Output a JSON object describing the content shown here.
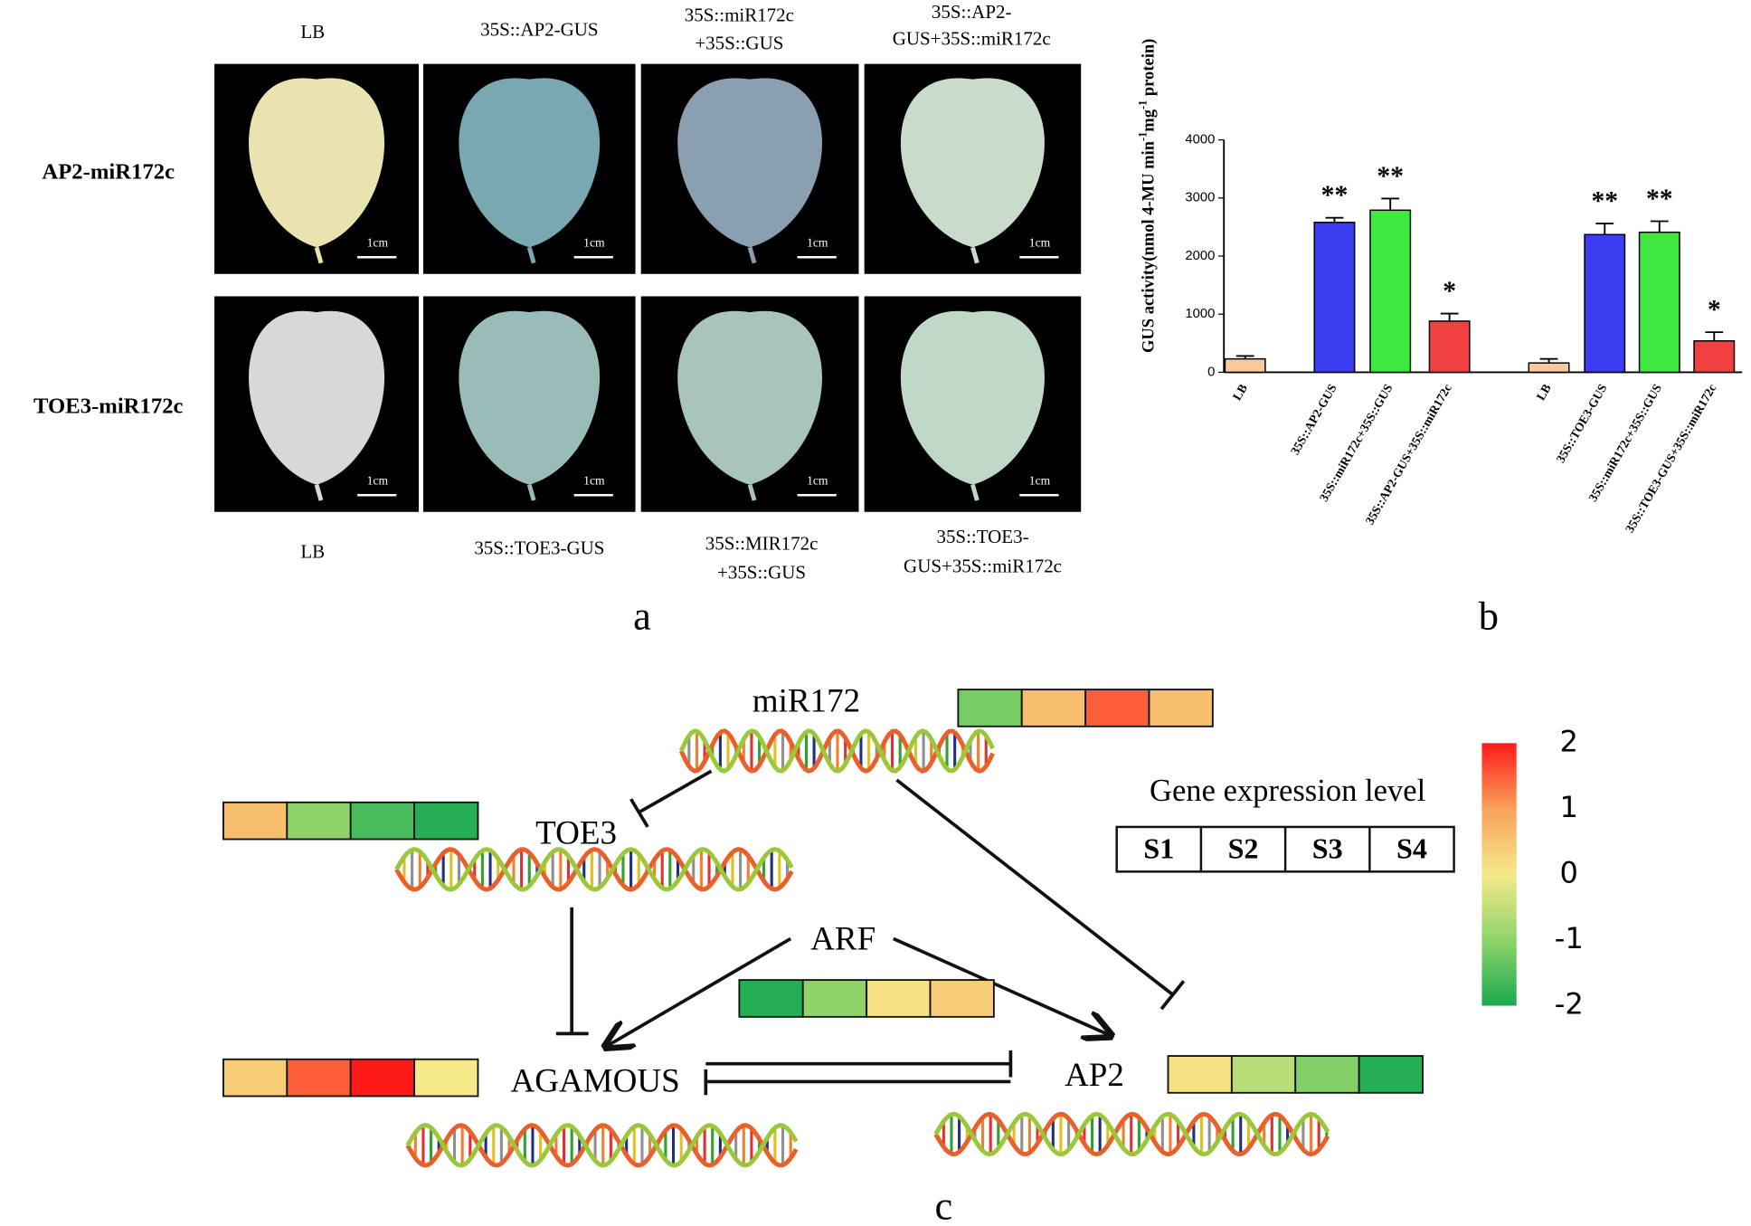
{
  "panel_a": {
    "label": "a",
    "row_labels": [
      "AP2-miR172c",
      "TOE3-miR172c"
    ],
    "top_labels": [
      [
        "LB"
      ],
      [
        "35S::AP2-GUS"
      ],
      [
        "35S::miR172c",
        "+35S::GUS"
      ],
      [
        "35S::AP2-",
        "GUS+35S::miR172c"
      ]
    ],
    "bottom_labels": [
      [
        "LB"
      ],
      [
        "35S::TOE3-GUS"
      ],
      [
        "35S::MIR172c",
        "+35S::GUS"
      ],
      [
        "35S::TOE3-",
        "GUS+35S::miR172c"
      ]
    ],
    "scale_label": "1cm"
  },
  "chart_data": {
    "type": "bar",
    "label": "b",
    "y_label": [
      "GUS activity(nmol 4-MU min",
      "-1",
      "mg",
      "-1",
      " protein)"
    ],
    "categories": [
      "LB",
      "35S::AP2-GUS",
      "35S::miR172c+35S::GUS",
      "35S::AP2-GUS+35S::miR172c",
      "LB",
      "35S::TOE3-GUS",
      "35S::miR172c+35S::GUS",
      "35S::TOE3-GUS+35S::miR172c"
    ],
    "values": [
      230,
      2580,
      2790,
      880,
      160,
      2370,
      2410,
      540
    ],
    "errors": [
      50,
      80,
      200,
      130,
      70,
      190,
      190,
      150
    ],
    "colors": [
      "#f8c99a",
      "#3c3cf0",
      "#40e840",
      "#f04040",
      "#f8c99a",
      "#3c3cf0",
      "#40e840",
      "#f04040"
    ],
    "significance": [
      null,
      "**",
      "**",
      "*",
      null,
      "**",
      "**",
      "*"
    ],
    "ylim": [
      0,
      4000
    ],
    "yticks": [
      0,
      1000,
      2000,
      3000,
      4000
    ]
  },
  "panel_c": {
    "label": "c",
    "legend_title": "Gene expression level",
    "samples": [
      "S1",
      "S2",
      "S3",
      "S4"
    ],
    "colorbar": {
      "lim": [
        -2,
        2
      ],
      "ticks": [
        2,
        1,
        0,
        -1,
        -2
      ]
    },
    "genes": [
      {
        "name": "miR172",
        "values": [
          -1.2,
          0.6,
          1.5,
          0.6
        ]
      },
      {
        "name": "TOE3",
        "values": [
          0.6,
          -1.0,
          -1.6,
          -1.9
        ]
      },
      {
        "name": "ARF",
        "values": [
          -1.9,
          -1.0,
          0.1,
          0.4
        ]
      },
      {
        "name": "AGAMOUS",
        "values": [
          0.4,
          1.5,
          2.0,
          0.0
        ]
      },
      {
        "name": "AP2",
        "values": [
          0.1,
          -0.6,
          -1.1,
          -1.9
        ]
      }
    ]
  }
}
